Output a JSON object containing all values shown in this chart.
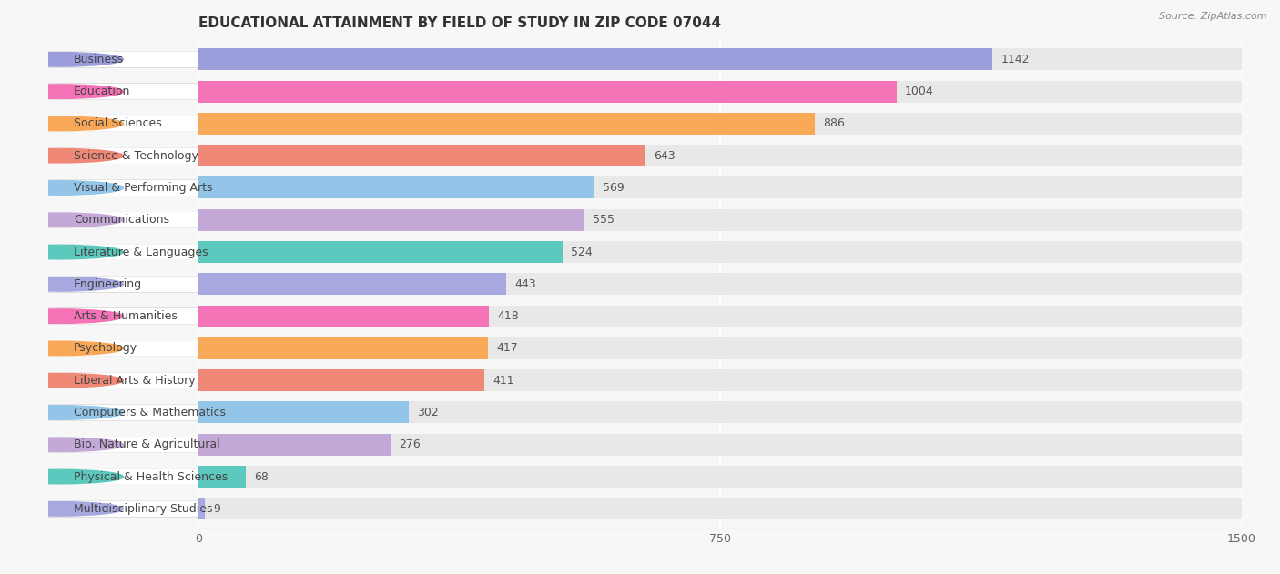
{
  "title": "EDUCATIONAL ATTAINMENT BY FIELD OF STUDY IN ZIP CODE 07044",
  "source": "Source: ZipAtlas.com",
  "categories": [
    "Business",
    "Education",
    "Social Sciences",
    "Science & Technology",
    "Visual & Performing Arts",
    "Communications",
    "Literature & Languages",
    "Engineering",
    "Arts & Humanities",
    "Psychology",
    "Liberal Arts & History",
    "Computers & Mathematics",
    "Bio, Nature & Agricultural",
    "Physical & Health Sciences",
    "Multidisciplinary Studies"
  ],
  "values": [
    1142,
    1004,
    886,
    643,
    569,
    555,
    524,
    443,
    418,
    417,
    411,
    302,
    276,
    68,
    9
  ],
  "bar_colors": [
    "#9b9edb",
    "#f472b6",
    "#f9a857",
    "#f08878",
    "#93c5e8",
    "#c4a8d8",
    "#5cc8be",
    "#a8a8e0",
    "#f472b6",
    "#f9a857",
    "#f08878",
    "#93c5e8",
    "#c4a8d8",
    "#5cc8be",
    "#a8a8e0"
  ],
  "xlim": [
    0,
    1500
  ],
  "xticks": [
    0,
    750,
    1500
  ],
  "background_color": "#f7f7f7",
  "bar_background_color": "#e8e8e8",
  "title_fontsize": 11,
  "label_fontsize": 9,
  "value_fontsize": 9
}
